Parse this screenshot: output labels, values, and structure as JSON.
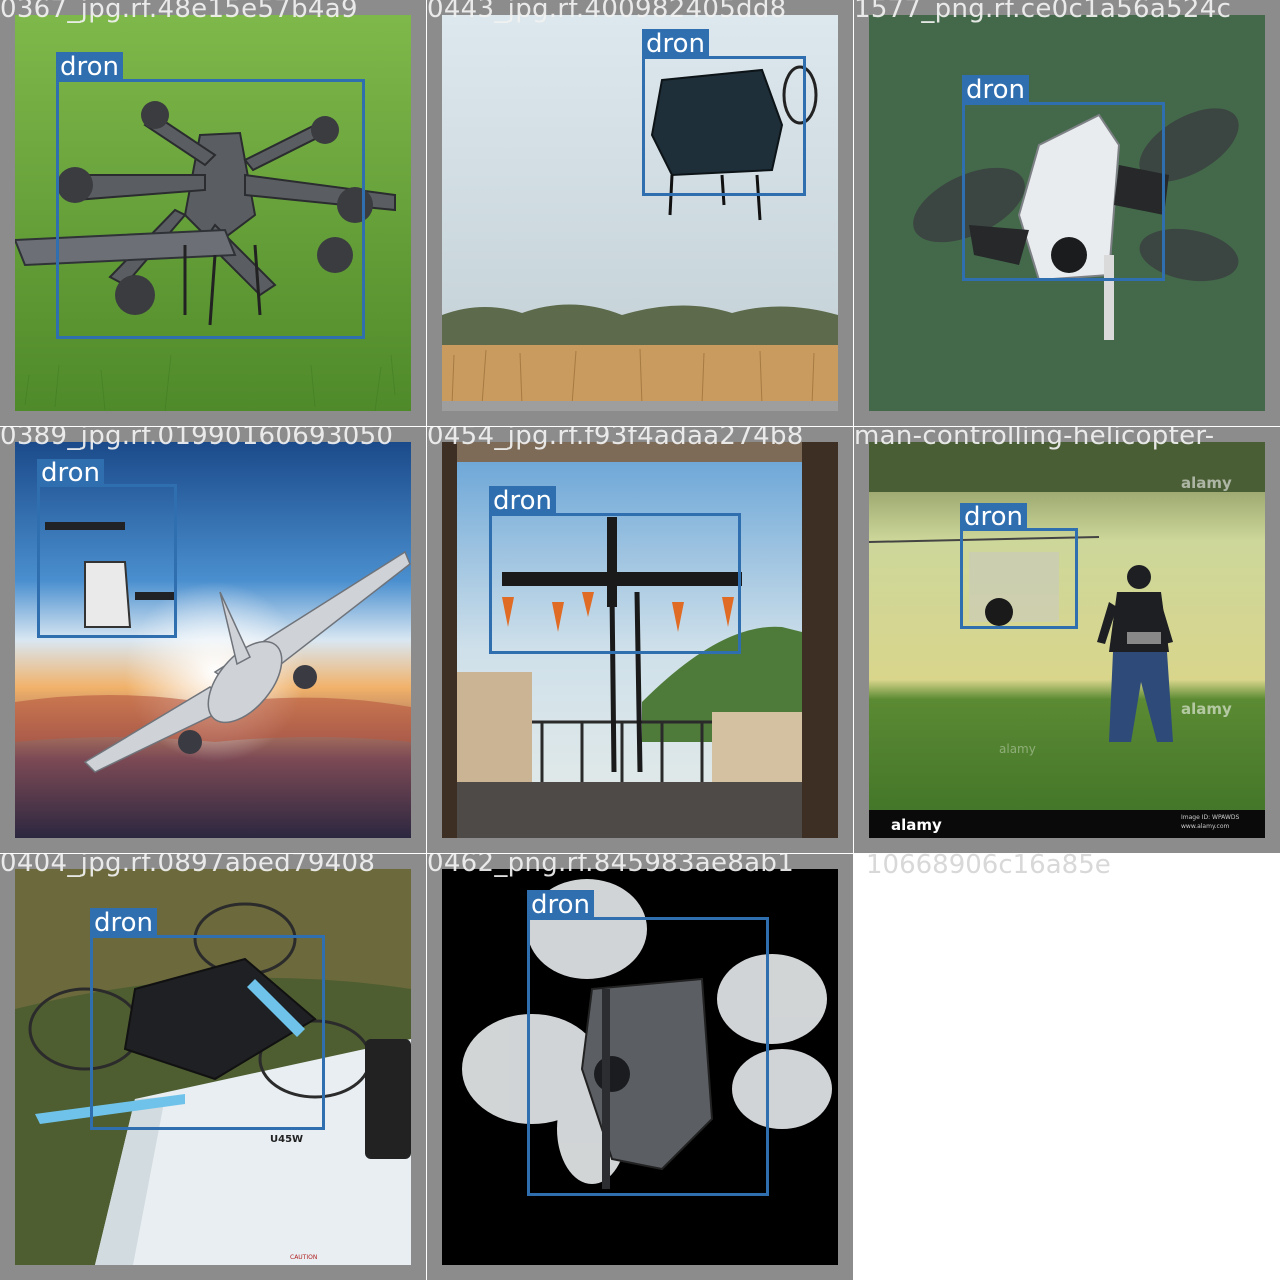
{
  "tiles": [
    {
      "filename": "0367_jpg.rf.48e15e57b4a9",
      "label": "dron"
    },
    {
      "filename": "0443_jpg.rf.400982405dd8",
      "label": "dron"
    },
    {
      "filename": "1577_png.rf.ce0c1a56a524c",
      "label": "dron"
    },
    {
      "filename": "0389_jpg.rf.01990160693050",
      "label": "dron"
    },
    {
      "filename": "0454_jpg.rf.f93f4adaa274b8",
      "label": "dron"
    },
    {
      "filename": "man-controlling-helicopter-",
      "label": "dron",
      "watermarks": [
        "alamy",
        "alamy",
        "alamy"
      ],
      "footer_brand": "alamy",
      "footer_text": [
        "Image ID: WPAWDS",
        "www.alamy.com"
      ]
    },
    {
      "filename": "0404_jpg.rf.0897abed79408",
      "label": "dron",
      "product_text": [
        "U45W",
        "CAUTION"
      ]
    },
    {
      "filename": "0462_png.rf.845983ae8ab1",
      "label": "dron"
    }
  ],
  "tail_label": "10668906c16a85e",
  "colors": {
    "box": "#2f6fb0",
    "tile_border": "#8c8c8c"
  }
}
